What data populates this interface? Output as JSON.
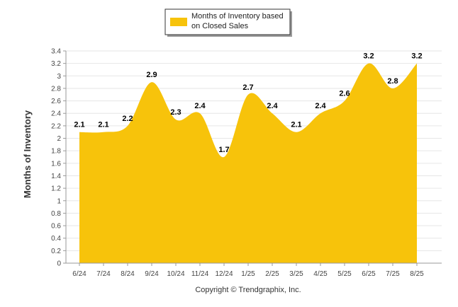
{
  "chart_data": {
    "type": "area",
    "categories": [
      "6/24",
      "7/24",
      "8/24",
      "9/24",
      "10/24",
      "11/24",
      "12/24",
      "1/25",
      "2/25",
      "3/25",
      "4/25",
      "5/25",
      "6/25",
      "7/25",
      "8/25"
    ],
    "series": [
      {
        "name_line1": "Months of Inventory based",
        "name_line2": "on Closed Sales",
        "values": [
          2.1,
          2.1,
          2.2,
          2.9,
          2.3,
          2.4,
          1.7,
          2.7,
          2.4,
          2.1,
          2.4,
          2.6,
          3.2,
          2.8,
          3.2
        ],
        "color": "#F7C30B"
      }
    ],
    "data_labels": [
      "2.1",
      "2.1",
      "2.2",
      "2.9",
      "2.3",
      "2.4",
      "1.7",
      "2.7",
      "2.4",
      "2.1",
      "2.4",
      "2.6",
      "3.2",
      "2.8",
      "3.2"
    ],
    "ylabel": "Months of Inventory",
    "xlabel": "",
    "ylim": [
      0,
      3.4
    ],
    "y_ticks": [
      "0",
      "0.2",
      "0.4",
      "0.6",
      "0.8",
      "1",
      "1.2",
      "1.4",
      "1.6",
      "1.8",
      "2",
      "2.2",
      "2.4",
      "2.6",
      "2.8",
      "3",
      "3.2",
      "3.4"
    ],
    "grid": true,
    "legend_position": "top-center"
  },
  "footer": {
    "copyright": "Copyright © Trendgraphix, Inc."
  }
}
